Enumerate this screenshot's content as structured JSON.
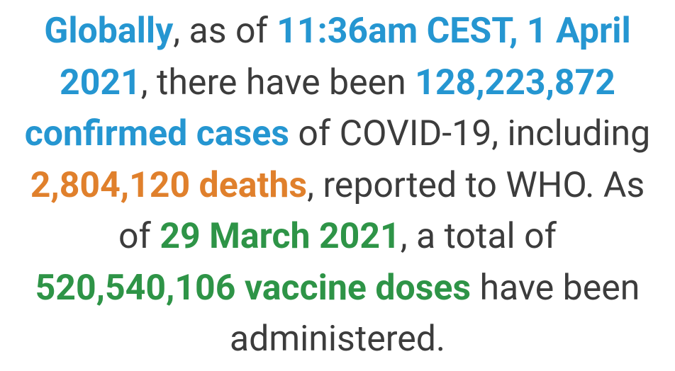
{
  "colors": {
    "text": "#3c3c3c",
    "blue": "#2596d1",
    "orange": "#e0802c",
    "green": "#2e9447",
    "background": "#ffffff"
  },
  "segments": {
    "globally": "Globally",
    "s1": ", as of ",
    "timestamp": "11:36am CEST, 1 April 2021",
    "s2": ", there have been ",
    "cases": "128,223,872 confirmed cases",
    "s3": " of COVID-19, including ",
    "deaths": "2,804,120 deaths",
    "s4": ", reported to WHO. As of ",
    "vaccine_date": "29 March 2021",
    "s5": ", a total of ",
    "doses": "520,540,106 vaccine doses",
    "s6": " have been administered."
  }
}
